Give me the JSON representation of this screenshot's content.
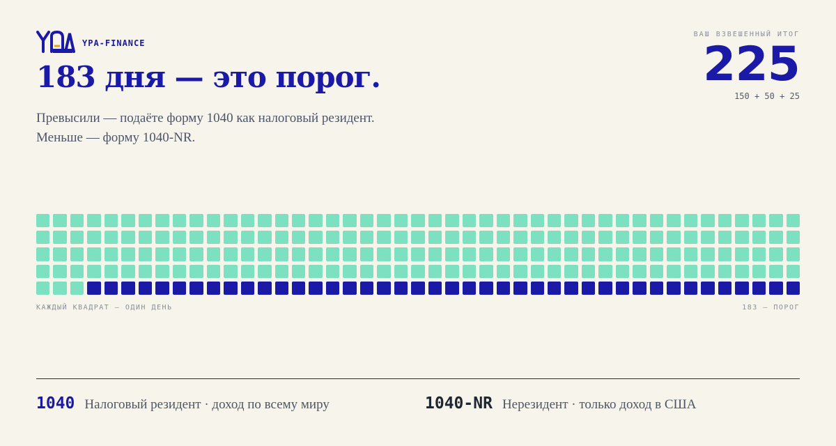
{
  "brand": {
    "name": "YPA-FINANCE",
    "logo_text": "YPA",
    "logo_sub": "FINANCE"
  },
  "headline": "183 дня — это порог.",
  "subtitle": [
    "Превысили — подаёте форму 1040 как налоговый резидент.",
    "Меньше — форму 1040-NR."
  ],
  "total": {
    "label": "ВАШ ВЗВЕШЕННЫЙ ИТОГ",
    "value": "225",
    "breakdown": "150 + 50 + 25"
  },
  "grid": {
    "total_days": 225,
    "threshold": 183,
    "columns": 45,
    "colors": {
      "below_threshold": "#7de0c0",
      "above_threshold": "#1a1aa6"
    },
    "caption_left": "КАЖДЫЙ КВАДРАТ — ОДИН ДЕНЬ",
    "caption_right": "183 — ПОРОГ"
  },
  "forms": [
    {
      "code": "1040",
      "description": "Налоговый резидент · доход по всему миру"
    },
    {
      "code": "1040-NR",
      "description": "Нерезидент · только доход в США"
    }
  ],
  "colors": {
    "accent": "#1a1aa6",
    "mint": "#7de0c0",
    "background": "#f7f4ec"
  }
}
